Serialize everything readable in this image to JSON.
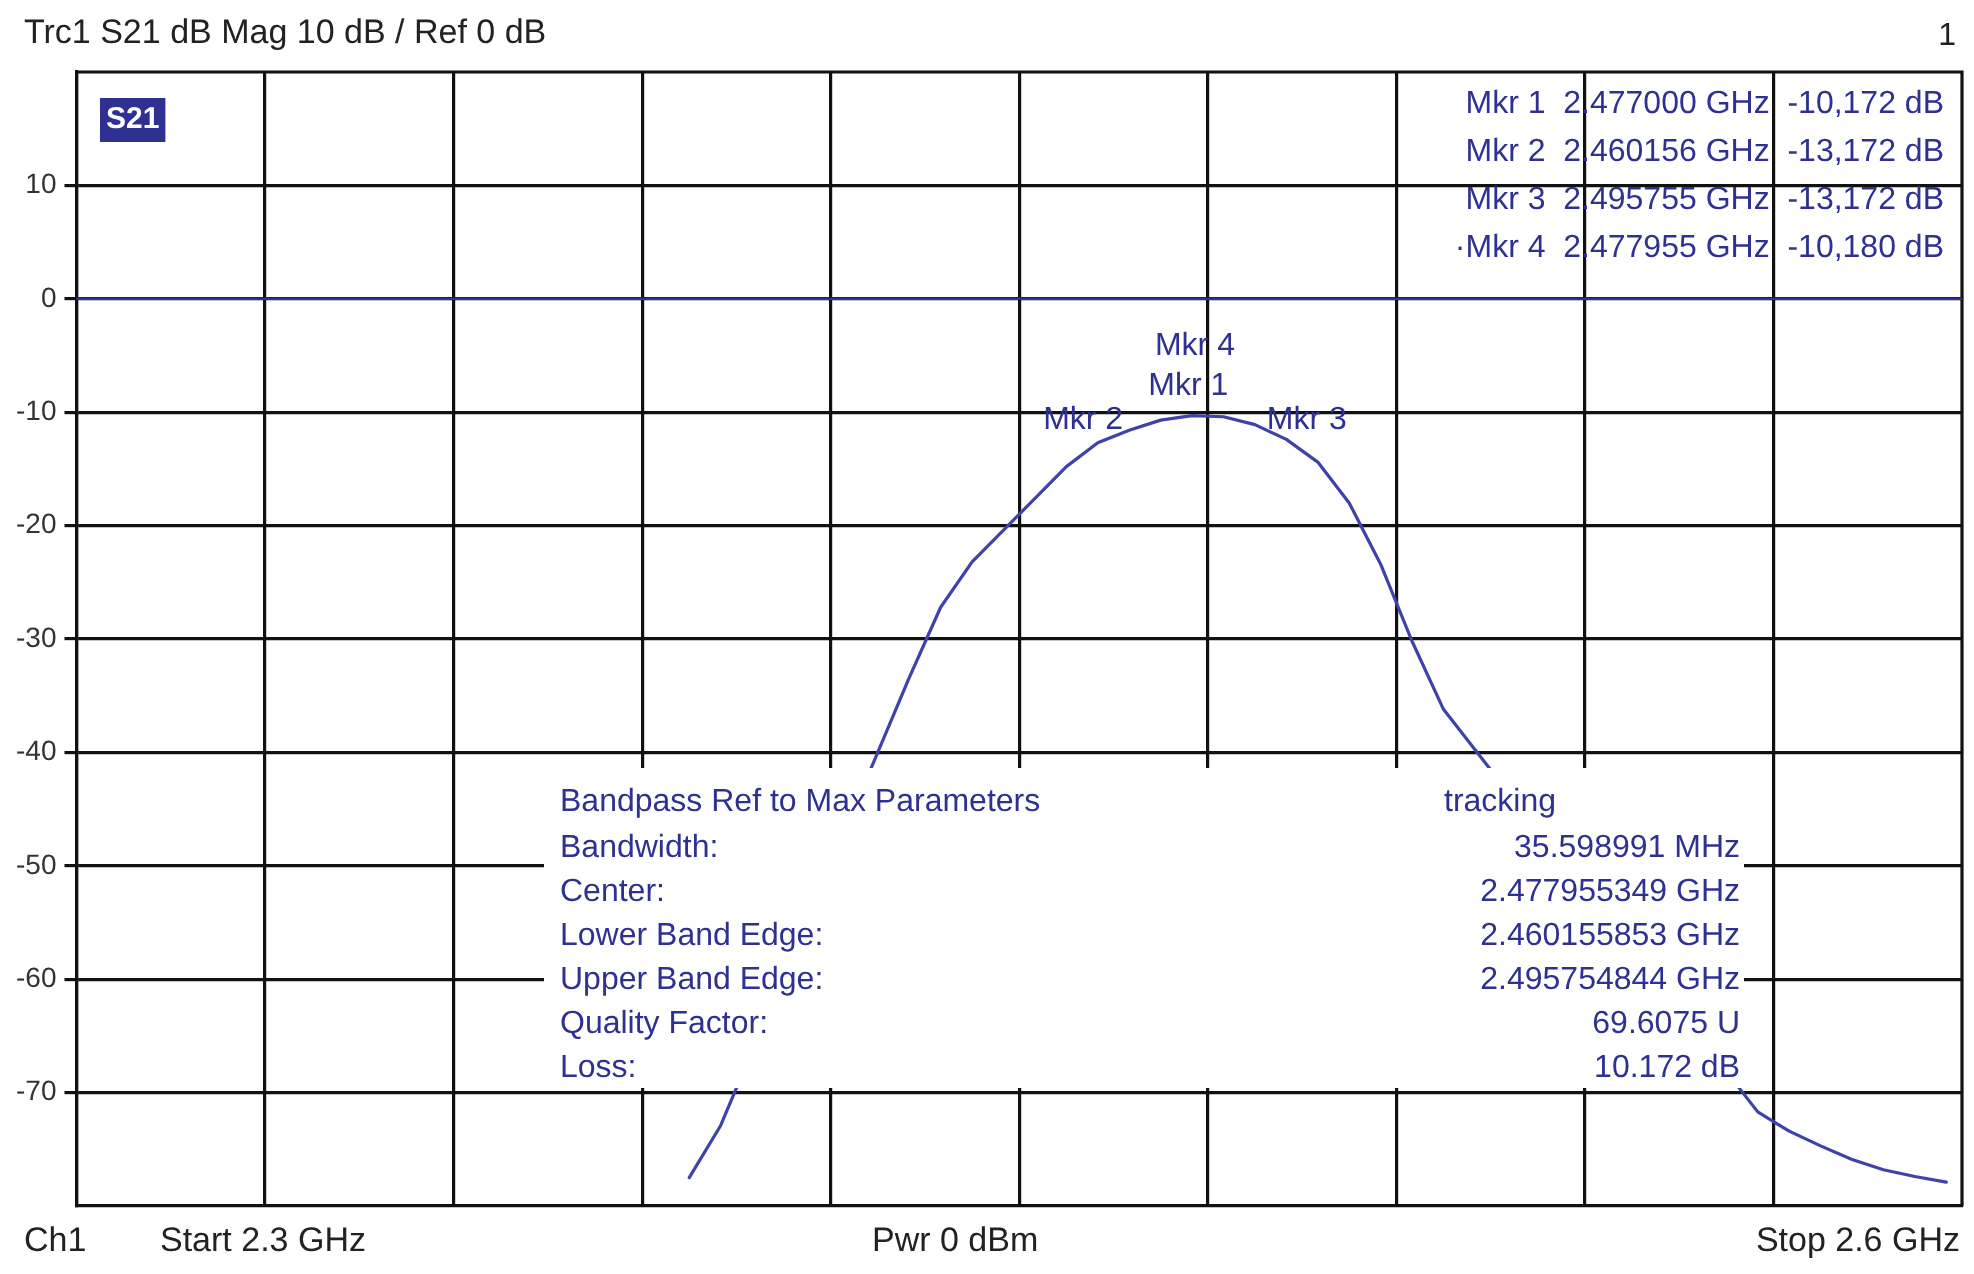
{
  "chart_data": {
    "type": "line",
    "title": "Trc1 S21 dB Mag 10 dB / Ref 0 dB",
    "categories": [
      null,
      null,
      null,
      null,
      null,
      null,
      null,
      null,
      null,
      null,
      null,
      null,
      null,
      null,
      null,
      null,
      null,
      null,
      null,
      null,
      null,
      null,
      null,
      null,
      null,
      null,
      null,
      null,
      null,
      null,
      null,
      null,
      null,
      null,
      null,
      null,
      null,
      null,
      null,
      null,
      null,
      null,
      null,
      null,
      null,
      null,
      null,
      null,
      null,
      null,
      null,
      null,
      null,
      null,
      null,
      null,
      null,
      null,
      null,
      null
    ],
    "ylim": [
      -80,
      20
    ],
    "yticks": [
      10,
      0,
      -10,
      -20,
      -30,
      -40,
      -50,
      -60,
      -70
    ],
    "tick_labels": "y",
    "grid": true,
    "series": [
      {
        "type": "line",
        "color": "#3f42a8",
        "marker": "none",
        "line_style": "solid",
        "values": [
          null,
          null,
          null,
          null,
          null,
          null,
          null,
          null,
          null,
          null,
          null,
          null,
          null,
          null,
          null,
          null,
          null,
          null,
          null,
          -77.5,
          -72.9,
          null,
          null,
          null,
          null,
          null,
          -33.4,
          -27.2,
          -23.2,
          -20.4,
          -17.6,
          -14.8,
          -12.7,
          -11.6,
          -10.7,
          -10.3,
          -10.4,
          -11.1,
          -12.4,
          -14.4,
          -18,
          -23.4,
          -30.2,
          -36.2,
          null,
          null,
          null,
          null,
          null,
          null,
          null,
          null,
          null,
          -71.7,
          -73.4,
          -74.7,
          -75.9,
          -76.8,
          -77.4,
          -77.9
        ]
      }
    ],
    "ref_lines": [
      {
        "axis": "y",
        "value": 0,
        "color": "#2e3192"
      }
    ],
    "annotations": [
      "S21",
      "1",
      "Mkr 1  2.477000 GHz  -10,172 dB",
      "Mkr 2  2.460156 GHz  -13,172 dB",
      "Mkr 3  2.495755 GHz  -13,172 dB",
      "·Mkr 4  2.477955 GHz  -10,180 dB",
      "Bandpass Ref to Max Parameters",
      "tracking",
      "Bandwidth:",
      "35.598991 MHz",
      "Center:",
      "2.477955349 GHz",
      "Lower Band Edge:",
      "2.460155853 GHz",
      "Upper Band Edge:",
      "2.495754844 GHz",
      "Quality Factor:",
      "69.6075 U",
      "Loss:",
      "10.172 dB",
      "Ch1",
      "Start 2.3 GHz",
      "Pwr 0 dBm",
      "Stop 2.6 GHz",
      {
        "text": "Mkr 1",
        "y": -10.172
      },
      {
        "text": "Mkr 2",
        "y": -13.172
      },
      {
        "text": "Mkr 3",
        "y": -13.172
      },
      {
        "text": "Mkr 4",
        "y": -10.18
      }
    ]
  }
}
